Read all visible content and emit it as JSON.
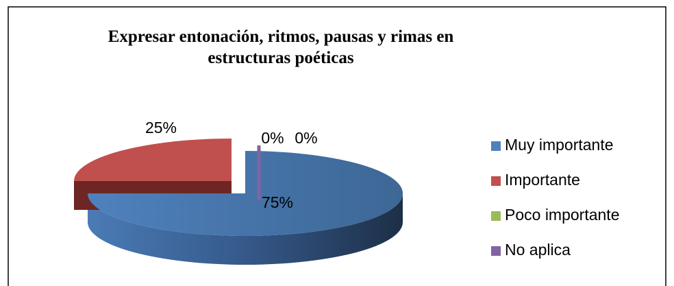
{
  "chart_data": {
    "type": "pie3d",
    "title": "Expresar entonación, ritmos, pausas y rimas en estructuras poéticas",
    "categories": [
      "Muy importante",
      "Importante",
      "Poco importante",
      "No aplica"
    ],
    "values": [
      75,
      25,
      0,
      0
    ],
    "value_labels": [
      "75%",
      "25%",
      "0%",
      "0%"
    ],
    "colors": [
      "#4f81bd",
      "#c0504d",
      "#9bbb59",
      "#8064a2"
    ],
    "legend": "right"
  }
}
